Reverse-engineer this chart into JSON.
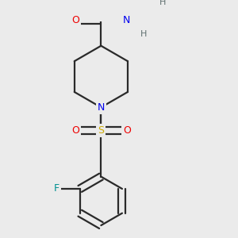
{
  "background_color": "#ebebeb",
  "atom_colors": {
    "C": "#1a1a1a",
    "N": "#0000ee",
    "O": "#ee0000",
    "S": "#ccaa00",
    "F": "#009090",
    "H": "#607070"
  },
  "bond_color": "#2a2a2a",
  "line_width": 1.6,
  "figsize": [
    3.0,
    3.0
  ],
  "dpi": 100
}
